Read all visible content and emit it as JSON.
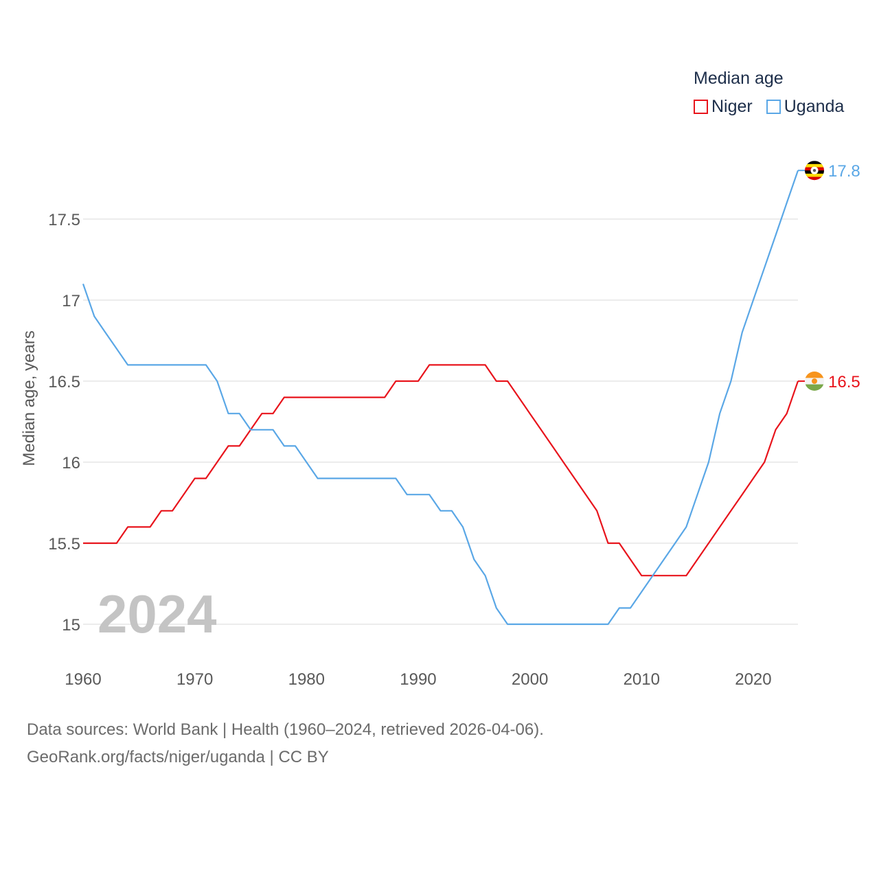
{
  "legend": {
    "title": "Median age",
    "items": [
      {
        "name": "Niger",
        "color": "#e8141c"
      },
      {
        "name": "Uganda",
        "color": "#5aa7e6"
      }
    ]
  },
  "footer": {
    "line1": "Data sources: World Bank | Health (1960–2024, retrieved 2026-04-06).",
    "line2": "GeoRank.org/facts/niger/uganda | CC BY"
  },
  "chart_data": {
    "type": "line",
    "title": "Median age",
    "xlabel": "",
    "ylabel": "Median age, years",
    "xlim": [
      1960,
      2024
    ],
    "ylim": [
      14.8,
      17.9
    ],
    "x_ticks": [
      1960,
      1970,
      1980,
      1990,
      2000,
      2010,
      2020
    ],
    "y_ticks": [
      15,
      15.5,
      16,
      16.5,
      17,
      17.5
    ],
    "y_tick_labels": [
      "15",
      "15.5",
      "16",
      "16.5",
      "17",
      "17.5"
    ],
    "grid": true,
    "year_label": "2024",
    "x": [
      1960,
      1961,
      1962,
      1963,
      1964,
      1965,
      1966,
      1967,
      1968,
      1969,
      1970,
      1971,
      1972,
      1973,
      1974,
      1975,
      1976,
      1977,
      1978,
      1979,
      1980,
      1981,
      1982,
      1983,
      1984,
      1985,
      1986,
      1987,
      1988,
      1989,
      1990,
      1991,
      1992,
      1993,
      1994,
      1995,
      1996,
      1997,
      1998,
      1999,
      2000,
      2001,
      2002,
      2003,
      2004,
      2005,
      2006,
      2007,
      2008,
      2009,
      2010,
      2011,
      2012,
      2013,
      2014,
      2015,
      2016,
      2017,
      2018,
      2019,
      2020,
      2021,
      2022,
      2023,
      2024
    ],
    "series": [
      {
        "name": "Niger",
        "color": "#e8141c",
        "end_label": "16.5",
        "flag": "niger-flag-icon",
        "values": [
          15.5,
          15.5,
          15.5,
          15.5,
          15.6,
          15.6,
          15.6,
          15.7,
          15.7,
          15.8,
          15.9,
          15.9,
          16.0,
          16.1,
          16.1,
          16.2,
          16.3,
          16.3,
          16.4,
          16.4,
          16.4,
          16.4,
          16.4,
          16.4,
          16.4,
          16.4,
          16.4,
          16.4,
          16.5,
          16.5,
          16.5,
          16.6,
          16.6,
          16.6,
          16.6,
          16.6,
          16.6,
          16.5,
          16.5,
          16.4,
          16.3,
          16.2,
          16.1,
          16.0,
          15.9,
          15.8,
          15.7,
          15.5,
          15.5,
          15.4,
          15.3,
          15.3,
          15.3,
          15.3,
          15.3,
          15.4,
          15.5,
          15.6,
          15.7,
          15.8,
          15.9,
          16.0,
          16.2,
          16.3,
          16.5
        ]
      },
      {
        "name": "Uganda",
        "color": "#5aa7e6",
        "end_label": "17.8",
        "flag": "uganda-flag-icon",
        "values": [
          17.1,
          16.9,
          16.8,
          16.7,
          16.6,
          16.6,
          16.6,
          16.6,
          16.6,
          16.6,
          16.6,
          16.6,
          16.5,
          16.3,
          16.3,
          16.2,
          16.2,
          16.2,
          16.1,
          16.1,
          16.0,
          15.9,
          15.9,
          15.9,
          15.9,
          15.9,
          15.9,
          15.9,
          15.9,
          15.8,
          15.8,
          15.8,
          15.7,
          15.7,
          15.6,
          15.4,
          15.3,
          15.1,
          15.0,
          15.0,
          15.0,
          15.0,
          15.0,
          15.0,
          15.0,
          15.0,
          15.0,
          15.0,
          15.1,
          15.1,
          15.2,
          15.3,
          15.4,
          15.5,
          15.6,
          15.8,
          16.0,
          16.3,
          16.5,
          16.8,
          17.0,
          17.2,
          17.4,
          17.6,
          17.8
        ]
      }
    ]
  }
}
